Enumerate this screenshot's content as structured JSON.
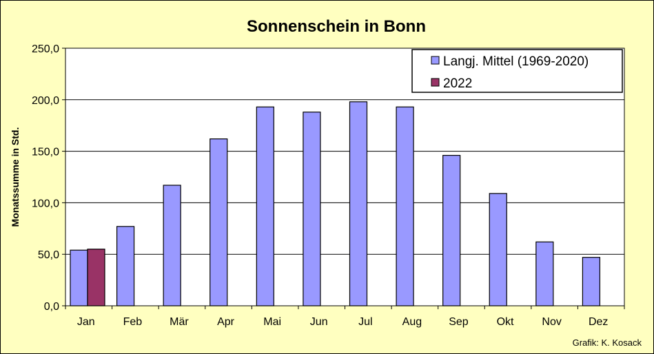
{
  "chart_data": {
    "type": "bar",
    "title": "Sonnenschein in Bonn",
    "ylabel": "Monatssumme in Std.",
    "xlabel": "",
    "ylim": [
      0,
      250
    ],
    "yticks": [
      "0,0",
      "50,0",
      "100,0",
      "150,0",
      "200,0",
      "250,0"
    ],
    "categories": [
      "Jan",
      "Feb",
      "Mär",
      "Apr",
      "Mai",
      "Jun",
      "Jul",
      "Aug",
      "Sep",
      "Okt",
      "Nov",
      "Dez"
    ],
    "series": [
      {
        "name": "Langj. Mittel (1969-2020)",
        "color": "#9999ff",
        "values": [
          54,
          77,
          117,
          162,
          193,
          188,
          198,
          193,
          146,
          109,
          62,
          47
        ]
      },
      {
        "name": "2022",
        "color": "#993366",
        "values": [
          55,
          null,
          null,
          null,
          null,
          null,
          null,
          null,
          null,
          null,
          null,
          null
        ]
      }
    ],
    "grid": true,
    "legend_position": "top-right",
    "plot_background": "#ffffff",
    "background": "#ffffc0"
  },
  "credit": "Grafik:  K. Kosack"
}
